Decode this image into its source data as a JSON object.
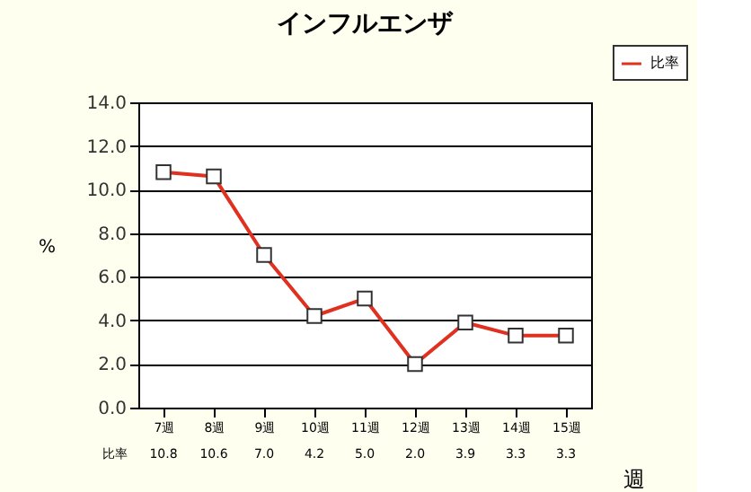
{
  "chart_data": {
    "type": "line",
    "title": "インフルエンザ",
    "ylabel": "%",
    "xlabel": "週",
    "categories": [
      "7週",
      "8週",
      "9週",
      "10週",
      "11週",
      "12週",
      "13週",
      "14週",
      "15週"
    ],
    "series": [
      {
        "name": "比率",
        "color": "#e03020",
        "values": [
          10.8,
          10.6,
          7.0,
          4.2,
          5.0,
          2.0,
          3.9,
          3.3,
          3.3
        ],
        "value_labels": [
          "10.8",
          "10.6",
          "7.0",
          "4.2",
          "5.0",
          "2.0",
          "3.9",
          "3.3",
          "3.3"
        ]
      }
    ],
    "ylim": [
      0,
      14
    ],
    "yticks": [
      {
        "value": 0,
        "label": "0.0"
      },
      {
        "value": 2,
        "label": "2.0"
      },
      {
        "value": 4,
        "label": "4.0"
      },
      {
        "value": 6,
        "label": "6.0"
      },
      {
        "value": 8,
        "label": "8.0"
      },
      {
        "value": 10,
        "label": "10.0"
      },
      {
        "value": 12,
        "label": "12.0"
      },
      {
        "value": 14,
        "label": "14.0"
      }
    ],
    "grid": "y",
    "legend": "top right",
    "marker": "square",
    "line_style": "solid"
  }
}
